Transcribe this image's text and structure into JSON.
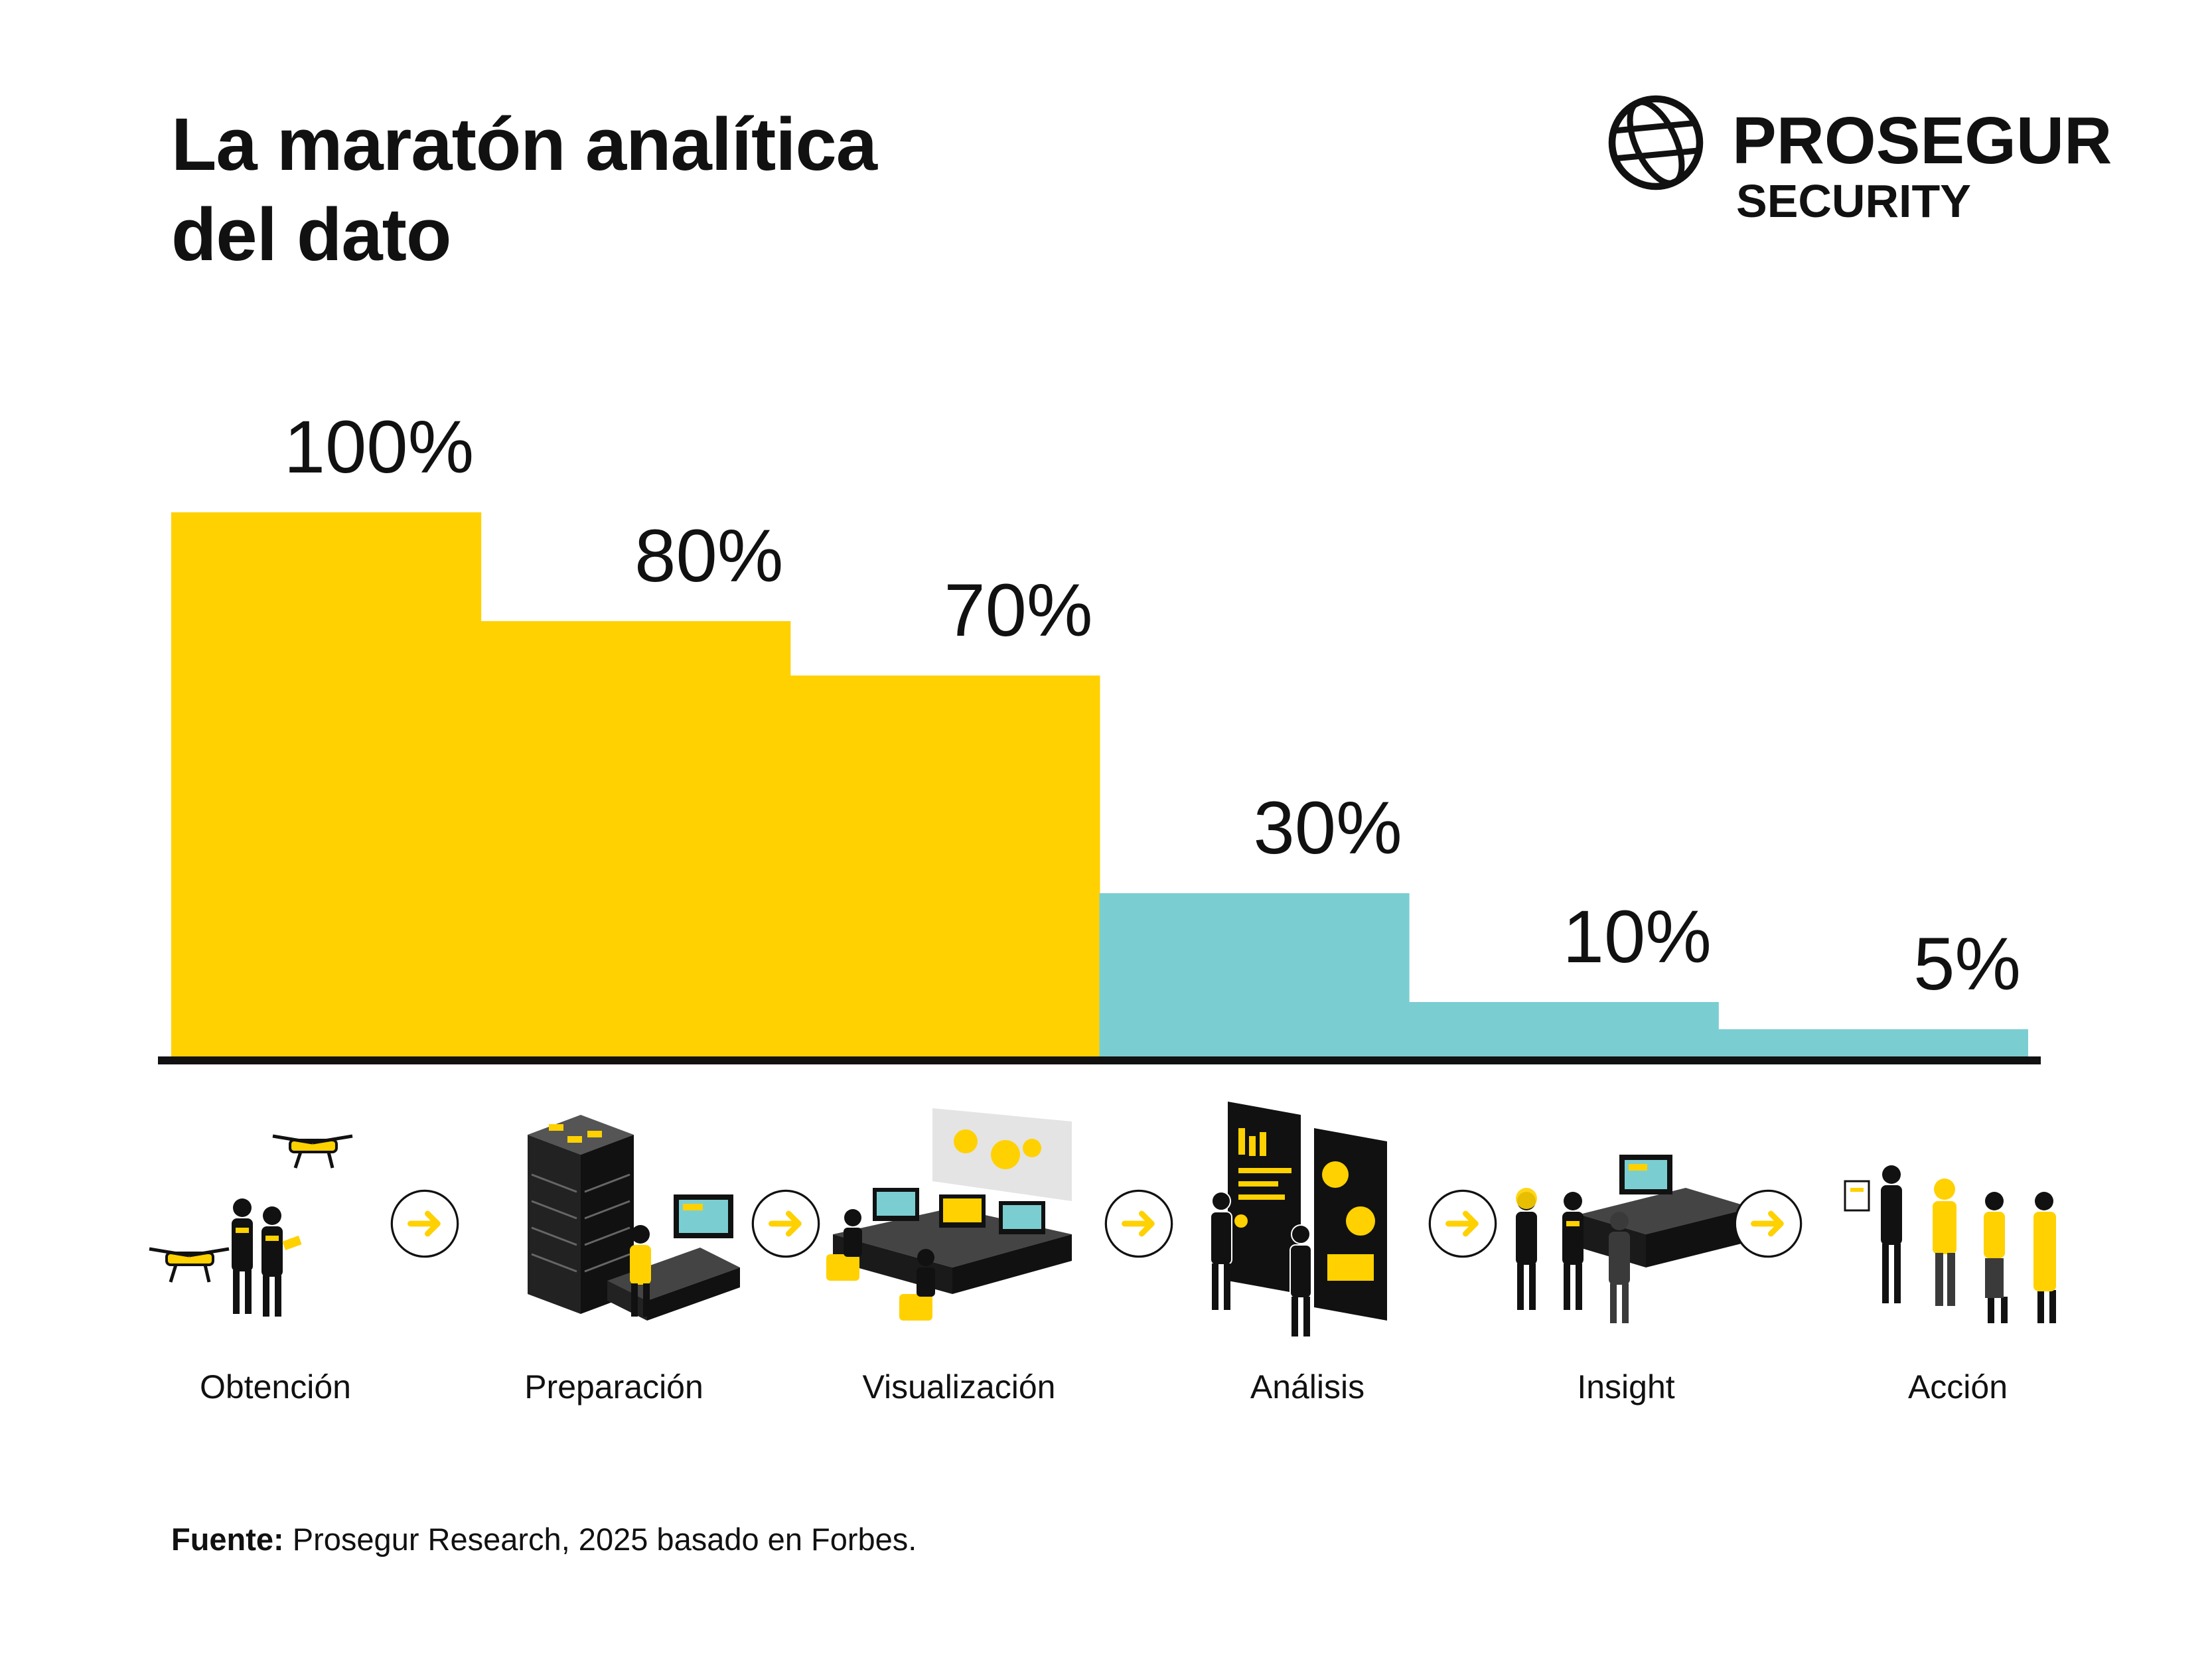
{
  "title": {
    "line1": "La maratón analítica",
    "line2": "del dato"
  },
  "brand": {
    "name": "PROSEGUR",
    "sub": "SECURITY",
    "icon": "globe-icon"
  },
  "chart_data": {
    "type": "bar",
    "categories": [
      "Obtención",
      "Preparación",
      "Visualización",
      "Análisis",
      "Insight",
      "Acción"
    ],
    "values": [
      100,
      80,
      70,
      30,
      10,
      5
    ],
    "value_labels": [
      "100%",
      "80%",
      "70%",
      "30%",
      "10%",
      "5%"
    ],
    "ylim": [
      0,
      100
    ],
    "grid": false,
    "colors": [
      "#FFD100",
      "#FFD100",
      "#FFD100",
      "#7ACED1",
      "#7ACED1",
      "#7ACED1"
    ]
  },
  "stages": [
    {
      "label": "Obtención",
      "icon": "drone-operators-icon"
    },
    {
      "label": "Preparación",
      "icon": "server-workstation-icon"
    },
    {
      "label": "Visualización",
      "icon": "control-room-icon"
    },
    {
      "label": "Análisis",
      "icon": "dashboard-analysts-icon"
    },
    {
      "label": "Insight",
      "icon": "meeting-team-icon"
    },
    {
      "label": "Acción",
      "icon": "field-team-icon"
    }
  ],
  "arrow_icon": "arrow-right-icon",
  "source": {
    "bold": "Fuente:",
    "text": " Prosegur Research, 2025 basado en Forbes."
  },
  "colors": {
    "yellow": "#FFD100",
    "teal": "#7ACED1",
    "dark": "#111111",
    "gray": "#3a3a3a"
  }
}
